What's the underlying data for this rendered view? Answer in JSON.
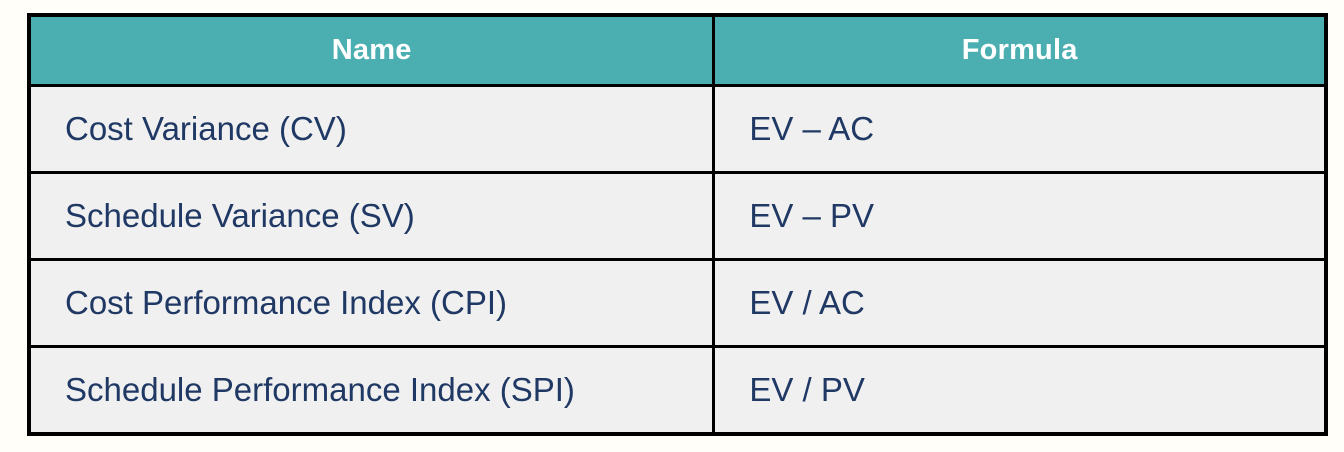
{
  "table": {
    "columns": [
      {
        "label": "Name"
      },
      {
        "label": "Formula"
      }
    ],
    "rows": [
      {
        "name": "Cost Variance (CV)",
        "formula": "EV – AC"
      },
      {
        "name": "Schedule Variance (SV)",
        "formula": "EV – PV"
      },
      {
        "name": "Cost Performance Index (CPI)",
        "formula": "EV / AC"
      },
      {
        "name": "Schedule Performance Index (SPI)",
        "formula": "EV / PV"
      }
    ],
    "colors": {
      "header_bg": "#4bafb2",
      "header_text": "#ffffff",
      "row_bg": "#f0f0f0",
      "body_text": "#1f3864",
      "border": "#000000",
      "page_bg": "#fffef8"
    }
  }
}
